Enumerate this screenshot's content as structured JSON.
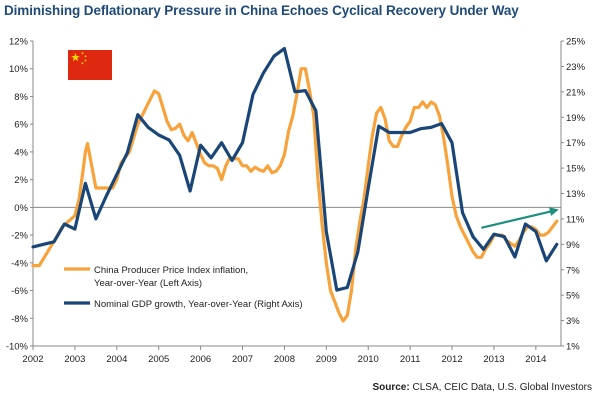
{
  "chart_data": {
    "type": "line",
    "title": "Diminishing Deflationary Pressure in China Echoes Cyclical Recovery Under Way",
    "x_tick_labels": [
      "2002",
      "2003",
      "2004",
      "2005",
      "2006",
      "2007",
      "2008",
      "2009",
      "2010",
      "2011",
      "2012",
      "2013",
      "2014"
    ],
    "xlim": [
      2002,
      2014.6
    ],
    "y_left": {
      "ylim": [
        -10,
        12
      ],
      "tick_labels": [
        "-10%",
        "-8%",
        "-6%",
        "-4%",
        "-2%",
        "0%",
        "2%",
        "4%",
        "6%",
        "8%",
        "10%",
        "12%"
      ]
    },
    "y_right": {
      "ylim": [
        1,
        25
      ],
      "tick_labels": [
        "1%",
        "3%",
        "5%",
        "7%",
        "9%",
        "11%",
        "13%",
        "15%",
        "17%",
        "19%",
        "21%",
        "23%",
        "25%"
      ]
    },
    "grid": false,
    "legend_position": "bottom-left",
    "series": [
      {
        "name": "China Producer Price Index inflation, Year-over-Year (Left Axis)",
        "axis": "left",
        "color": "#f7a23b",
        "x": [
          2002.0,
          2002.15,
          2002.35,
          2002.55,
          2002.7,
          2002.85,
          2003.0,
          2003.1,
          2003.2,
          2003.25,
          2003.3,
          2003.4,
          2003.5,
          2003.7,
          2003.9,
          2004.0,
          2004.1,
          2004.2,
          2004.3,
          2004.4,
          2004.5,
          2004.6,
          2004.7,
          2004.8,
          2004.9,
          2005.0,
          2005.1,
          2005.2,
          2005.3,
          2005.4,
          2005.5,
          2005.6,
          2005.7,
          2005.8,
          2005.9,
          2006.0,
          2006.1,
          2006.2,
          2006.3,
          2006.4,
          2006.5,
          2006.6,
          2006.7,
          2006.8,
          2006.9,
          2007.0,
          2007.1,
          2007.2,
          2007.3,
          2007.4,
          2007.5,
          2007.6,
          2007.7,
          2007.8,
          2007.9,
          2008.0,
          2008.1,
          2008.2,
          2008.3,
          2008.4,
          2008.5,
          2008.6,
          2008.7,
          2008.8,
          2008.9,
          2009.0,
          2009.1,
          2009.2,
          2009.3,
          2009.4,
          2009.5,
          2009.6,
          2009.7,
          2009.8,
          2009.9,
          2010.0,
          2010.1,
          2010.2,
          2010.3,
          2010.4,
          2010.5,
          2010.6,
          2010.7,
          2010.8,
          2010.9,
          2011.0,
          2011.1,
          2011.2,
          2011.3,
          2011.4,
          2011.5,
          2011.6,
          2011.7,
          2011.8,
          2011.9,
          2012.0,
          2012.1,
          2012.2,
          2012.3,
          2012.4,
          2012.5,
          2012.6,
          2012.7,
          2012.8,
          2012.9,
          2013.0,
          2013.1,
          2013.2,
          2013.3,
          2013.4,
          2013.5,
          2013.6,
          2013.7,
          2013.8,
          2013.9,
          2014.0,
          2014.1,
          2014.2,
          2014.3,
          2014.4,
          2014.5
        ],
        "y": [
          -4.2,
          -4.2,
          -3.2,
          -2.2,
          -1.4,
          -1.0,
          -0.6,
          0.6,
          2.8,
          4.0,
          4.6,
          3.0,
          1.4,
          1.4,
          1.4,
          2.0,
          3.2,
          3.6,
          4.0,
          5.0,
          6.0,
          6.6,
          7.2,
          7.8,
          8.4,
          8.2,
          7.2,
          6.2,
          5.6,
          5.7,
          6.0,
          5.2,
          4.8,
          5.4,
          4.6,
          3.8,
          3.2,
          3.0,
          3.0,
          2.8,
          2.0,
          3.0,
          3.6,
          3.5,
          3.5,
          3.0,
          3.0,
          2.6,
          2.9,
          2.7,
          2.6,
          3.0,
          2.5,
          2.6,
          3.0,
          3.8,
          5.5,
          6.6,
          8.2,
          10.0,
          10.0,
          8.4,
          6.6,
          2.0,
          -1.2,
          -4.0,
          -6.0,
          -6.8,
          -7.6,
          -8.2,
          -7.8,
          -6.0,
          -3.0,
          -1.0,
          0.6,
          3.0,
          5.2,
          6.8,
          7.2,
          6.4,
          4.8,
          4.4,
          4.4,
          5.2,
          5.8,
          6.2,
          7.2,
          7.2,
          7.6,
          7.2,
          7.6,
          7.4,
          6.6,
          5.0,
          3.0,
          0.8,
          -0.6,
          -1.4,
          -2.0,
          -2.6,
          -3.2,
          -3.6,
          -3.6,
          -3.0,
          -2.6,
          -2.0,
          -2.0,
          -2.0,
          -2.4,
          -2.6,
          -2.8,
          -2.4,
          -1.8,
          -1.4,
          -1.4,
          -1.6,
          -2.0,
          -2.0,
          -1.8,
          -1.4,
          -1.0
        ]
      },
      {
        "name": "Nominal GDP growth, Year-over-Year (Right Axis)",
        "axis": "right",
        "color": "#1a4677",
        "x": [
          2002.0,
          2002.25,
          2002.5,
          2002.75,
          2003.0,
          2003.25,
          2003.5,
          2003.75,
          2004.0,
          2004.25,
          2004.5,
          2004.75,
          2005.0,
          2005.25,
          2005.5,
          2005.75,
          2006.0,
          2006.25,
          2006.5,
          2006.75,
          2007.0,
          2007.25,
          2007.5,
          2007.75,
          2008.0,
          2008.25,
          2008.5,
          2008.75,
          2009.0,
          2009.25,
          2009.5,
          2009.75,
          2010.0,
          2010.25,
          2010.5,
          2010.75,
          2011.0,
          2011.25,
          2011.5,
          2011.75,
          2012.0,
          2012.25,
          2012.5,
          2012.75,
          2013.0,
          2013.25,
          2013.5,
          2013.75,
          2014.0,
          2014.25,
          2014.5
        ],
        "y": [
          8.8,
          9.0,
          9.2,
          10.6,
          10.2,
          13.8,
          11.0,
          12.8,
          14.5,
          16.2,
          19.2,
          18.2,
          17.6,
          17.2,
          16.0,
          13.2,
          16.8,
          15.8,
          17.0,
          15.6,
          17.0,
          20.8,
          22.5,
          23.8,
          24.4,
          21.0,
          21.1,
          19.5,
          10.0,
          5.4,
          5.6,
          8.4,
          13.4,
          18.3,
          17.8,
          17.8,
          17.8,
          18.1,
          18.2,
          18.5,
          17.0,
          11.5,
          9.6,
          8.6,
          9.8,
          9.6,
          8.0,
          10.6,
          10.0,
          7.7,
          9.0
        ]
      }
    ],
    "annotation_arrow": {
      "from": [
        2012.7,
        10.3
      ],
      "to": [
        2014.5,
        11.7
      ],
      "axis": "right",
      "color": "#1e8f7e"
    }
  },
  "source": {
    "label": "Source:",
    "text": "CLSA, CEIC Data, U.S. Global Investors"
  },
  "flag": {
    "country": "China",
    "field_color": "#de2910",
    "star_color": "#ffde00"
  }
}
